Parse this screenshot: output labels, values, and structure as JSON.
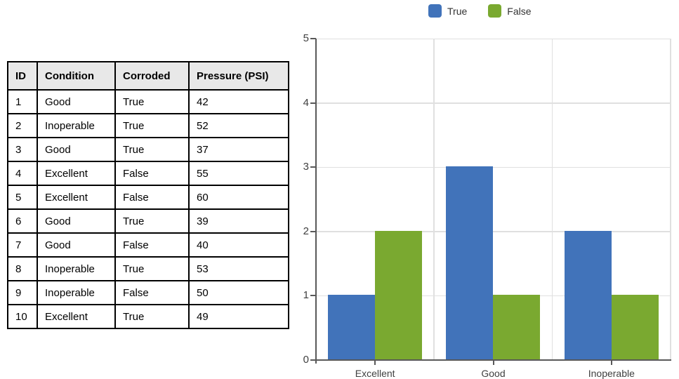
{
  "table": {
    "headers": [
      "ID",
      "Condition",
      "Corroded",
      "Pressure (PSI)"
    ],
    "rows": [
      [
        "1",
        "Good",
        "True",
        "42"
      ],
      [
        "2",
        "Inoperable",
        "True",
        "52"
      ],
      [
        "3",
        "Good",
        "True",
        "37"
      ],
      [
        "4",
        "Excellent",
        "False",
        "55"
      ],
      [
        "5",
        "Excellent",
        "False",
        "60"
      ],
      [
        "6",
        "Good",
        "True",
        "39"
      ],
      [
        "7",
        "Good",
        "False",
        "40"
      ],
      [
        "8",
        "Inoperable",
        "True",
        "53"
      ],
      [
        "9",
        "Inoperable",
        "False",
        "50"
      ],
      [
        "10",
        "Excellent",
        "True",
        "49"
      ]
    ]
  },
  "chart_data": {
    "type": "bar",
    "title": "",
    "xlabel": "",
    "ylabel": "",
    "categories": [
      "Excellent",
      "Good",
      "Inoperable"
    ],
    "series": [
      {
        "name": "True",
        "color": "#4173BA",
        "values": [
          1,
          3,
          2
        ]
      },
      {
        "name": "False",
        "color": "#7AA930",
        "values": [
          2,
          1,
          1
        ]
      }
    ],
    "ylim": [
      0,
      5
    ],
    "yticks": [
      0,
      1,
      2,
      3,
      4,
      5
    ],
    "grid": true,
    "legend_position": "top"
  },
  "colors": {
    "series_true": "#4173BA",
    "series_false": "#7AA930",
    "gridline": "#e0e0e0",
    "axis": "#595959",
    "table_header_bg": "#e8e8e8",
    "table_border": "#000000"
  }
}
